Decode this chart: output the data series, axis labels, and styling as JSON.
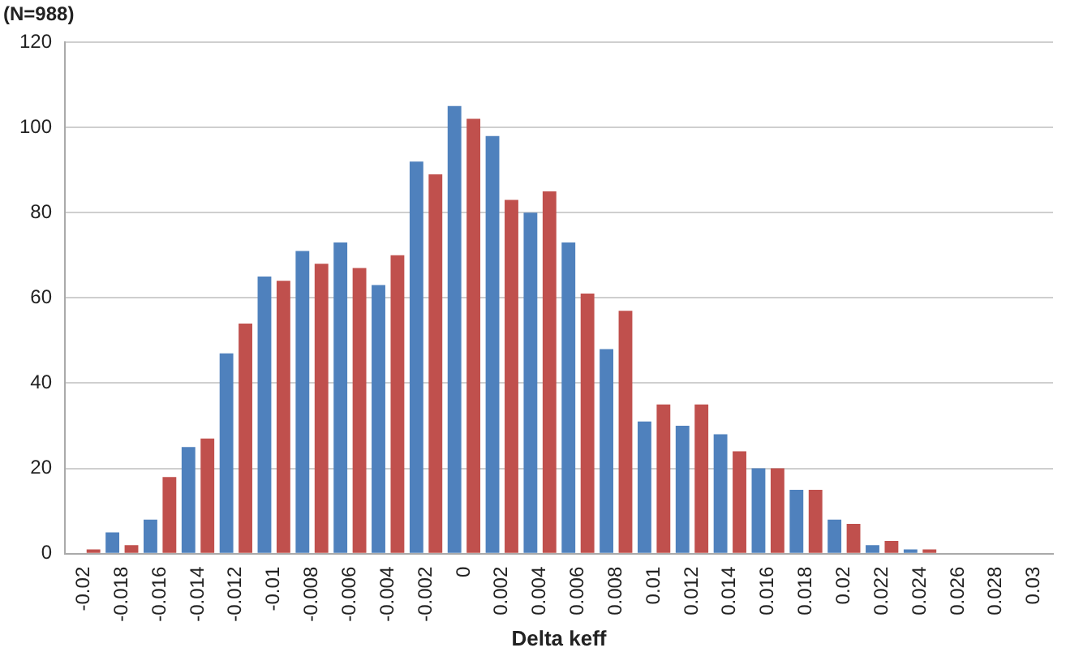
{
  "chart_data": {
    "type": "bar",
    "ylabel": "(N=988)",
    "xlabel": "Delta keff",
    "categories": [
      "-0.02",
      "-0.018",
      "-0.016",
      "-0.014",
      "-0.012",
      "-0.01",
      "-0.008",
      "-0.006",
      "-0.004",
      "-0.002",
      "0",
      "0.002",
      "0.004",
      "0.006",
      "0.008",
      "0.01",
      "0.012",
      "0.014",
      "0.016",
      "0.018",
      "0.02",
      "0.022",
      "0.024",
      "0.026",
      "0.028",
      "0.03"
    ],
    "series": [
      {
        "color": "#4f81bd",
        "values": [
          0,
          5,
          8,
          25,
          47,
          65,
          71,
          73,
          63,
          92,
          105,
          98,
          80,
          73,
          48,
          31,
          30,
          28,
          20,
          15,
          8,
          2,
          1,
          0,
          0,
          0
        ]
      },
      {
        "color": "#c0504d",
        "values": [
          1,
          2,
          18,
          27,
          54,
          64,
          68,
          67,
          70,
          89,
          102,
          83,
          85,
          61,
          57,
          35,
          35,
          24,
          20,
          15,
          7,
          3,
          1,
          0,
          0,
          0
        ]
      }
    ],
    "ylim": [
      0,
      120
    ],
    "yticks": [
      0,
      20,
      40,
      60,
      80,
      100,
      120
    ],
    "grid": "y",
    "legend": false
  }
}
